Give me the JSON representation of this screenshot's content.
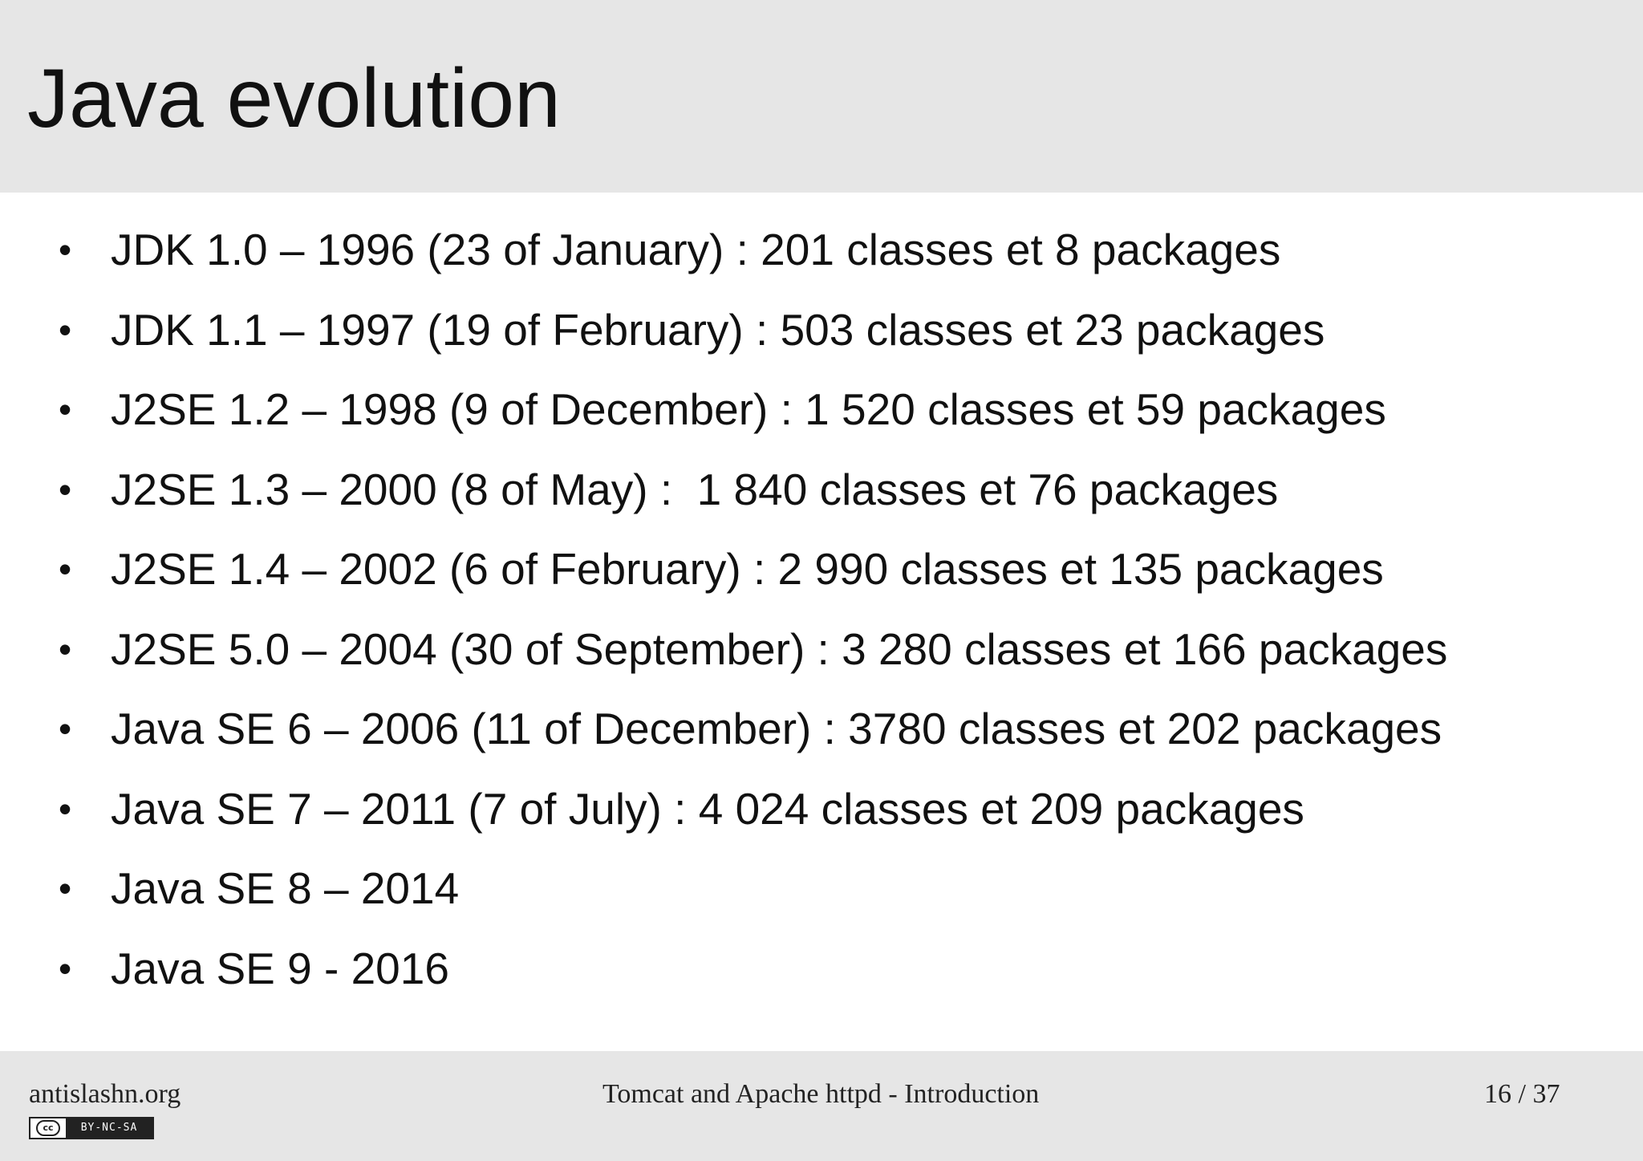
{
  "slide": {
    "title": "Java evolution",
    "bullets": [
      {
        "marker": "•",
        "text": "JDK 1.0 – 1996 (23 of January) : 201 classes et 8 packages"
      },
      {
        "marker": "•",
        "text": "JDK 1.1 – 1997 (19 of February) : 503 classes et 23 packages"
      },
      {
        "marker": "•",
        "text": "J2SE 1.2 – 1998 (9 of December) : 1 520 classes et 59 packages"
      },
      {
        "marker": "•",
        "text": "J2SE 1.3 – 2000 (8 of May) :  1 840 classes et 76 packages"
      },
      {
        "marker": "•",
        "text": "J2SE 1.4 – 2002 (6 of February) : 2 990 classes et 135 packages"
      },
      {
        "marker": "•",
        "text": "J2SE 5.0 – 2004 (30 of September) : 3 280 classes et 166 packages"
      },
      {
        "marker": "•",
        "text": "Java SE 6 – 2006 (11 of December) : 3780 classes et 202 packages"
      },
      {
        "marker": "•",
        "text": "Java SE 7 – 2011 (7 of July) : 4 024 classes et 209 packages"
      },
      {
        "marker": "•",
        "text": "Java SE 8 – 2014"
      },
      {
        "marker": "•",
        "text": "Java SE 9 - 2016"
      }
    ]
  },
  "footer": {
    "site": "antislashn.org",
    "presentation_title": "Tomcat and Apache httpd - Introduction",
    "page_number": "16 / 37",
    "license_logo_text": "cc",
    "license_label": "BY-NC-SA"
  },
  "colors": {
    "header_background": "#e6e6e6",
    "footer_background": "#e6e6e6",
    "text": "#111111"
  }
}
